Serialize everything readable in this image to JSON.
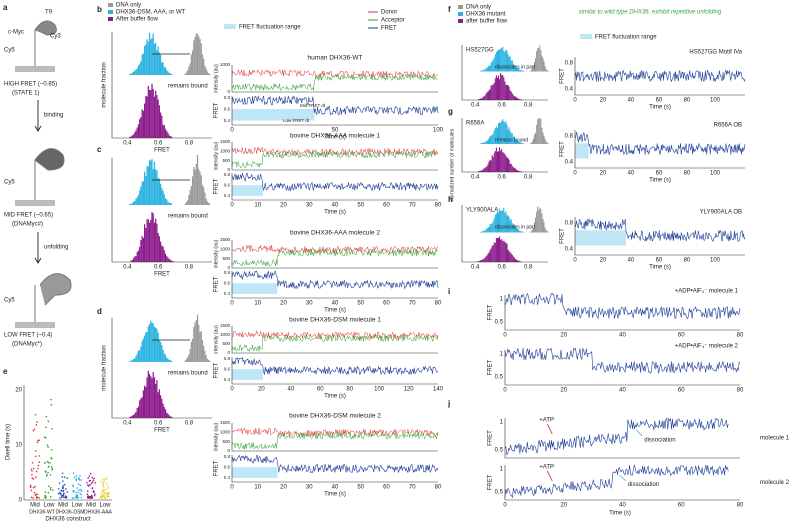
{
  "panel_labels": [
    "a",
    "b",
    "c",
    "d",
    "e",
    "f",
    "g",
    "h",
    "i",
    "j"
  ],
  "schematic": {
    "texts": [
      "c-Myc",
      "T9",
      "Cy3",
      "Cy5",
      "HIGH FRET (~0.85)",
      "(STATE 1)",
      "binding",
      "Cy5",
      "MID FRET (~0.65)",
      "(DNAMyc#)",
      "unfolding",
      "Cy5",
      "LOW FRET (~0.4)",
      "(DNAMyc*)"
    ]
  },
  "histogram_legend": [
    "DNA only",
    "DHX36-DSM, AAA, or WT",
    "After buffer flow"
  ],
  "histograms": [
    {
      "ylabel": "molecule fraction",
      "note": "remains bound",
      "xticks": [
        "0.4",
        "0.6",
        "0.8"
      ],
      "xlabel": "FRET"
    },
    {
      "note": "remains bound",
      "xticks": [
        "0.4",
        "0.6",
        "0.8"
      ],
      "xlabel": "FRET"
    },
    {
      "ylabel": "molecule fraction",
      "note": "remains bound",
      "xticks": [
        "0.4",
        "0.6",
        "0.8"
      ],
      "xlabel": "FRET"
    }
  ],
  "trace_legend": [
    "FRET fluctuation range",
    "Donor",
    "Acceptor",
    "FRET"
  ],
  "traces": [
    {
      "title": "human DHX36-WT",
      "int_label": "intensity (au)",
      "int_ticks": [
        "0",
        "1000"
      ],
      "fret_label": "FRET",
      "fret_ticks": [
        "0.4",
        "0.6",
        "0.8"
      ],
      "xticks": [
        "0",
        "50",
        "100"
      ],
      "xlabel": "Time (s)"
    },
    {
      "title": "bovine DHX36-AAA molecule 1",
      "int_label": "intensity (au)",
      "int_ticks": [
        "0",
        "500",
        "1000",
        "1500"
      ],
      "fret_label": "FRET",
      "fret_ticks": [
        "0.4",
        "0.6",
        "0.8"
      ],
      "xticks": [
        "0",
        "10",
        "20",
        "30",
        "40",
        "50",
        "60",
        "70",
        "80"
      ],
      "xlabel": "Time (s)"
    },
    {
      "title": "bovine DHX36-AAA molecule 2",
      "int_label": "intensity (au)",
      "int_ticks": [
        "0",
        "500",
        "1000",
        "1500"
      ],
      "fret_label": "FRET",
      "fret_ticks": [
        "0.4",
        "0.6",
        "0.8"
      ],
      "xticks": [
        "0",
        "10",
        "20",
        "30",
        "40",
        "50",
        "60",
        "70",
        "80"
      ],
      "xlabel": "Time (s)"
    },
    {
      "title": "bovine DHX36-DSM molecule 1",
      "int_label": "intensity (au)",
      "int_ticks": [
        "0",
        "500",
        "1000",
        "1500"
      ],
      "fret_label": "FRET",
      "fret_ticks": [
        "0.4",
        "0.6",
        "0.8"
      ],
      "xticks": [
        "0",
        "20",
        "40",
        "60",
        "80",
        "100",
        "120",
        "140"
      ],
      "xlabel": "Time (s)"
    },
    {
      "title": "bovine DHX36-DSM molecule 2",
      "int_label": "intensity (au)",
      "int_ticks": [
        "0",
        "500",
        "1000",
        "1500"
      ],
      "fret_label": "FRET",
      "fret_ticks": [
        "0.4",
        "0.6",
        "0.8"
      ],
      "xticks": [
        "0",
        "10",
        "20",
        "30",
        "40",
        "50",
        "60",
        "70",
        "80"
      ],
      "xlabel": "Time (s)"
    }
  ],
  "trace_annotations": [
    "Mid FRET dt",
    "Low FRET dt"
  ],
  "dwell": {
    "ylabel": "Dwell time (s)",
    "yticks": [
      "0",
      "10",
      "20"
    ],
    "groups": [
      "Mid",
      "Low",
      "Mid",
      "Low",
      "Mid",
      "Low"
    ],
    "constructs": [
      "DHX36-WT",
      "DHX36-DSM",
      "DHX36-AAA"
    ],
    "xlabel": "DHX36 construct"
  },
  "mutants": {
    "note": "similar to wild type DHX36, exhibit repetitive unfolding",
    "legend": [
      "DNA only",
      "DHX36 mutant",
      "after buffer flow",
      "FRET fluctuation range"
    ],
    "ylabel": "normalized number of molecules",
    "panels": [
      {
        "name": "HS527GG",
        "note": "dissociates in part",
        "trace_title": "HS527GG Motif IVa"
      },
      {
        "name": "R656A",
        "note": "remains bound",
        "trace_title": "R656A OB"
      },
      {
        "name": "YLY900ALA",
        "note": "dissociates in part",
        "trace_title": "YLY900ALA OB"
      }
    ],
    "hist_xticks": [
      "0.4",
      "0.6",
      "0.8"
    ],
    "fret_label": "FRET",
    "fret_ticks": [
      "0.4",
      "0.8"
    ],
    "xticks": [
      "0",
      "20",
      "40",
      "60",
      "80",
      "100"
    ],
    "xlabel": "Time (s)"
  },
  "adp": {
    "traces": [
      "+ADP•AlF₄⁻ molecule 1",
      "+ADP•AlF₄⁻ molecule 2"
    ],
    "ylabel": "FRET",
    "yticks": [
      "0.5",
      "1"
    ],
    "xticks": [
      "0",
      "20",
      "40",
      "60",
      "80"
    ]
  },
  "atp": {
    "labels": [
      "+ATP",
      "dissociation",
      "molecule 1",
      "+ATP",
      "dissociation",
      "molecule 2"
    ],
    "ylabel": "FRET",
    "yticks": [
      "0.5",
      "1"
    ],
    "xticks": [
      "0",
      "20",
      "40",
      "60",
      "80"
    ],
    "xlabel": "Time (s)"
  }
}
